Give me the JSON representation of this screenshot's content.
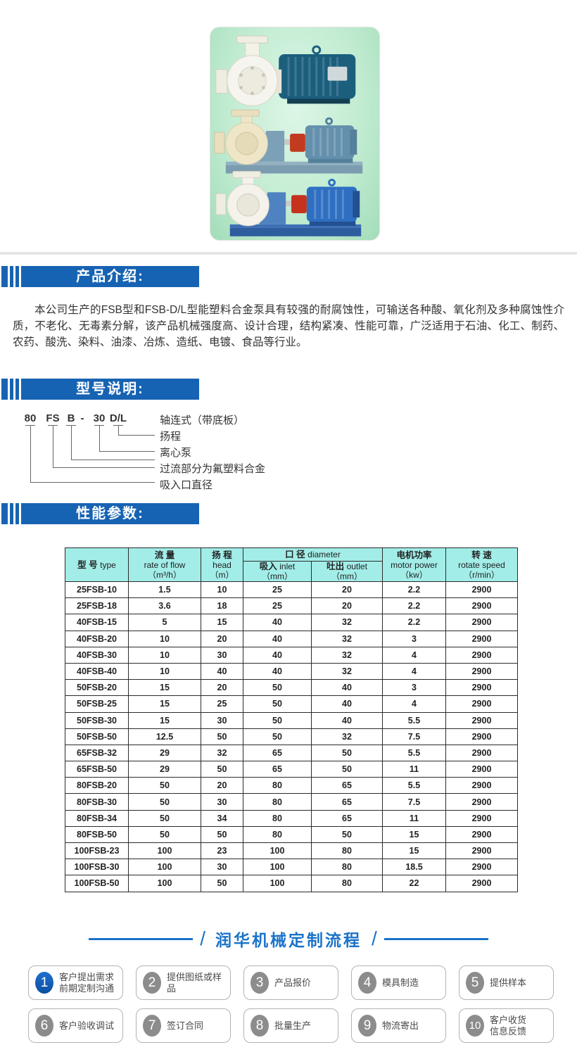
{
  "colors": {
    "section_bar_blue": "#1763b3",
    "flow_blue": "#1a73c8",
    "table_header_cyan": "#a2ede8",
    "photo_background_mint": "#c2ecd2",
    "pump_motor_dark_teal": "#1b5f7d",
    "pump_motor_steel_blue": "#6590ad",
    "pump_motor_bright_blue": "#2f6fc2",
    "pump_coupling_red": "#c23b20"
  },
  "sections": {
    "intro": {
      "title": "产品介绍:",
      "body": "本公司生产的FSB型和FSB-D/L型能塑料合金泵具有较强的耐腐蚀性，可输送各种酸、氧化剂及多种腐蚀性介质，不老化、无毒素分解，该产品机械强度高、设计合理，结构紧凑、性能可靠，广泛适用于石油、化工、制药、农药、酸洗、染料、油漆、冶炼、造纸、电镀、食品等行业。"
    },
    "model": {
      "title": "型号说明:",
      "code_parts": [
        "80",
        "FS",
        "B",
        "-",
        "30",
        "D/L"
      ],
      "meanings": [
        "轴连式（带底板）",
        "扬程",
        "离心泵",
        "过流部分为氟塑料合金",
        "吸入口直径"
      ]
    },
    "params": {
      "title": "性能参数:"
    }
  },
  "table": {
    "headers": {
      "model": {
        "zh": "型 号",
        "en": "type"
      },
      "flow": {
        "zh": "流 量",
        "en": "rate of flow",
        "unit": "（m³/h）"
      },
      "head": {
        "zh": "扬 程",
        "en": "head",
        "unit": "（m）"
      },
      "diameter": {
        "zh": "口 径",
        "en": "diameter"
      },
      "inlet": {
        "zh": "吸入",
        "en": "inlet",
        "unit": "（mm）"
      },
      "outlet": {
        "zh": "吐出",
        "en": "outlet",
        "unit": "（mm）"
      },
      "power": {
        "zh": "电机功率",
        "en": "motor power",
        "unit": "（kw）"
      },
      "speed": {
        "zh": "转 速",
        "en": "rotate speed",
        "unit": "（r/min）"
      }
    },
    "rows": [
      [
        "25FSB-10",
        "1.5",
        "10",
        "25",
        "20",
        "2.2",
        "2900"
      ],
      [
        "25FSB-18",
        "3.6",
        "18",
        "25",
        "20",
        "2.2",
        "2900"
      ],
      [
        "40FSB-15",
        "5",
        "15",
        "40",
        "32",
        "2.2",
        "2900"
      ],
      [
        "40FSB-20",
        "10",
        "20",
        "40",
        "32",
        "3",
        "2900"
      ],
      [
        "40FSB-30",
        "10",
        "30",
        "40",
        "32",
        "4",
        "2900"
      ],
      [
        "40FSB-40",
        "10",
        "40",
        "40",
        "32",
        "4",
        "2900"
      ],
      [
        "50FSB-20",
        "15",
        "20",
        "50",
        "40",
        "3",
        "2900"
      ],
      [
        "50FSB-25",
        "15",
        "25",
        "50",
        "40",
        "4",
        "2900"
      ],
      [
        "50FSB-30",
        "15",
        "30",
        "50",
        "40",
        "5.5",
        "2900"
      ],
      [
        "50FSB-50",
        "12.5",
        "50",
        "50",
        "32",
        "7.5",
        "2900"
      ],
      [
        "65FSB-32",
        "29",
        "32",
        "65",
        "50",
        "5.5",
        "2900"
      ],
      [
        "65FSB-50",
        "29",
        "50",
        "65",
        "50",
        "11",
        "2900"
      ],
      [
        "80FSB-20",
        "50",
        "20",
        "80",
        "65",
        "5.5",
        "2900"
      ],
      [
        "80FSB-30",
        "50",
        "30",
        "80",
        "65",
        "7.5",
        "2900"
      ],
      [
        "80FSB-34",
        "50",
        "34",
        "80",
        "65",
        "11",
        "2900"
      ],
      [
        "80FSB-50",
        "50",
        "50",
        "80",
        "50",
        "15",
        "2900"
      ],
      [
        "100FSB-23",
        "100",
        "23",
        "100",
        "80",
        "15",
        "2900"
      ],
      [
        "100FSB-30",
        "100",
        "30",
        "100",
        "80",
        "18.5",
        "2900"
      ],
      [
        "100FSB-50",
        "100",
        "50",
        "100",
        "80",
        "22",
        "2900"
      ]
    ]
  },
  "flow": {
    "title": "润华机械定制流程",
    "steps": [
      {
        "num": "1",
        "label": "客户提出需求\n前期定制沟通"
      },
      {
        "num": "2",
        "label": "提供图纸或样品"
      },
      {
        "num": "3",
        "label": "产品报价"
      },
      {
        "num": "4",
        "label": "模具制造"
      },
      {
        "num": "5",
        "label": "提供样本"
      },
      {
        "num": "6",
        "label": "客户验收调试"
      },
      {
        "num": "7",
        "label": "签订合同"
      },
      {
        "num": "8",
        "label": "批量生产"
      },
      {
        "num": "9",
        "label": "物流寄出"
      },
      {
        "num": "10",
        "label": "客户收货\n信息反馈"
      }
    ]
  }
}
